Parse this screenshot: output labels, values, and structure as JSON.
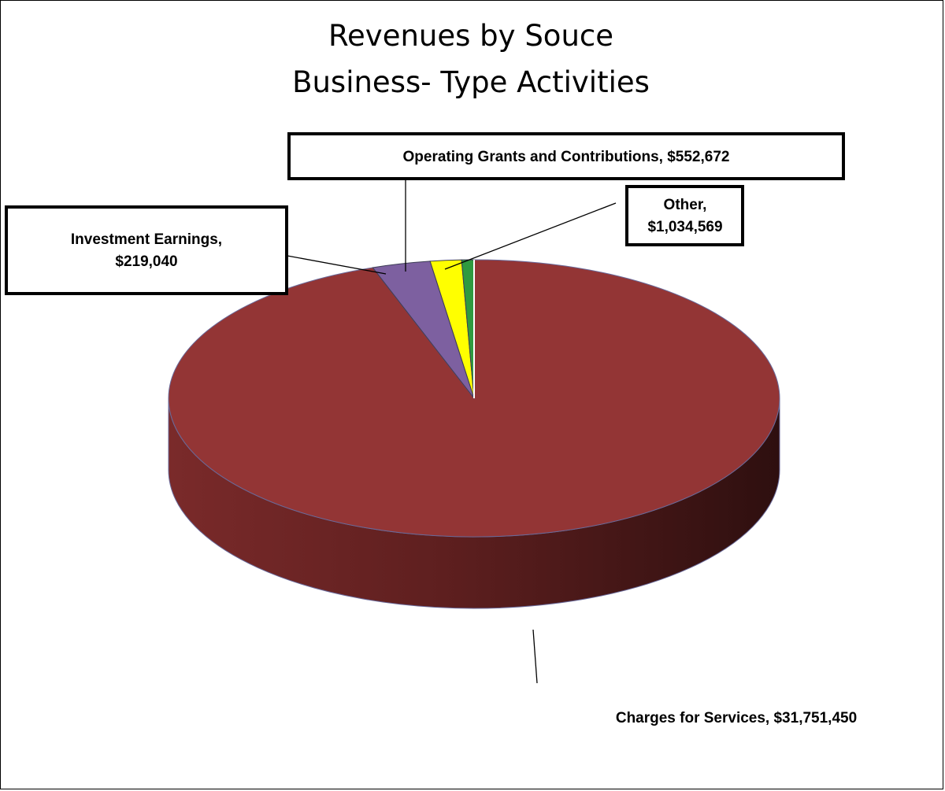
{
  "chart_data": {
    "type": "pie",
    "title": [
      "Revenues by Souce",
      "Business- Type Activities"
    ],
    "slices": [
      {
        "name": "Charges for Services",
        "value": 31751450,
        "value_label": "$31,751,450",
        "color": "#933535"
      },
      {
        "name": "Investment Earnings",
        "value": 219040,
        "value_label": "$219,040",
        "color": "#2f9a3f"
      },
      {
        "name": "Operating Grants and Contributions",
        "value": 552672,
        "value_label": "$552,672",
        "color": "#ffff00"
      },
      {
        "name": "Other",
        "value": 1034569,
        "value_label": "$1,034,569",
        "color": "#7d60a0"
      }
    ],
    "legend": "none",
    "style": "3d"
  },
  "labels": {
    "operating": "Operating Grants and Contributions,  $552,672",
    "other_name": "Other,",
    "other_value": "$1,034,569",
    "investment_name": "Investment Earnings,",
    "investment_value": "$219,040",
    "charges": "Charges for Services,  $31,751,450"
  }
}
